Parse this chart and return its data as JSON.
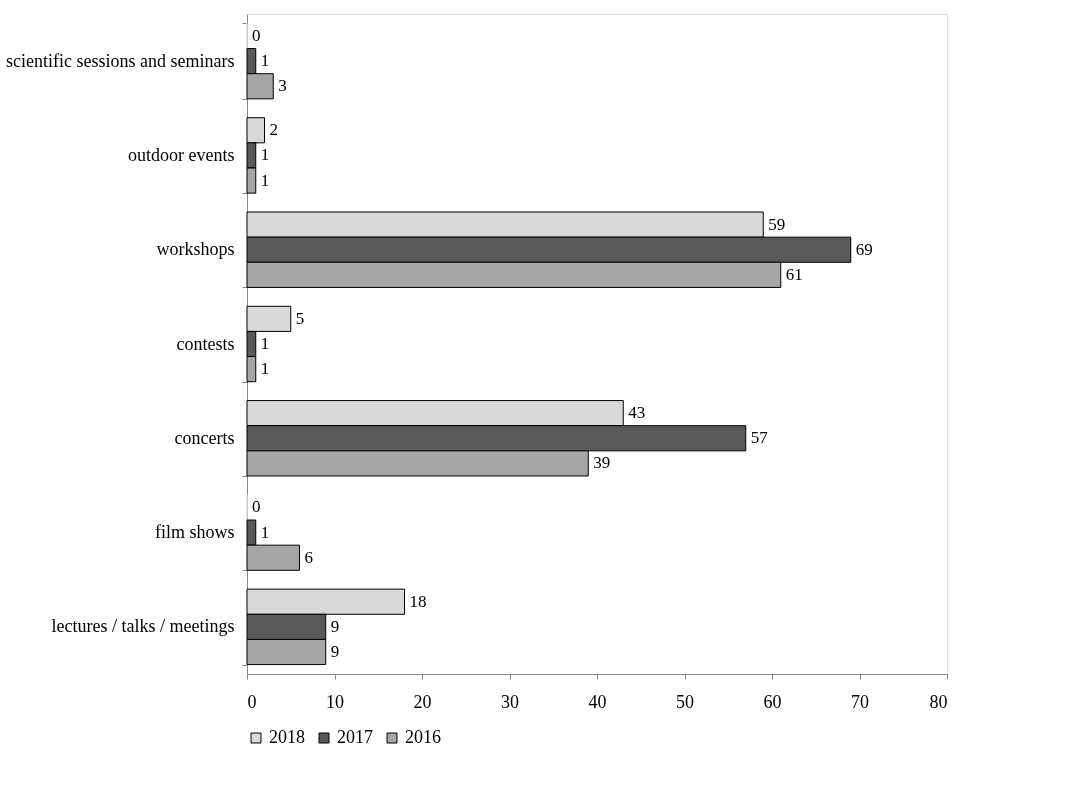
{
  "chart_data": {
    "type": "bar",
    "orientation": "horizontal",
    "categories": [
      "scientific sessions and seminars",
      "outdoor events",
      "workshops",
      "contests",
      "concerts",
      "film shows",
      "lectures / talks / meetings"
    ],
    "series": [
      {
        "name": "2018",
        "color": "#d9d9d9",
        "values": [
          0,
          2,
          59,
          5,
          43,
          0,
          18
        ]
      },
      {
        "name": "2017",
        "color": "#595959",
        "values": [
          1,
          1,
          69,
          1,
          57,
          1,
          9
        ]
      },
      {
        "name": "2016",
        "color": "#a6a6a6",
        "values": [
          3,
          1,
          61,
          1,
          39,
          6,
          9
        ]
      }
    ],
    "xlim": [
      0,
      80
    ],
    "xticks": [
      0,
      10,
      20,
      30,
      40,
      50,
      60,
      70,
      80
    ],
    "grid": false,
    "legend": "bottom",
    "data_labels": true
  }
}
